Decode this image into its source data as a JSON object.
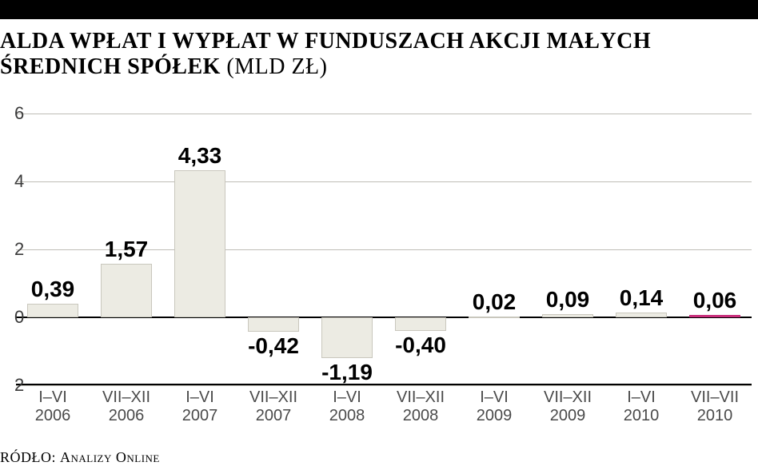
{
  "title": {
    "line1_bold": "ALDA WPŁAT I WYPŁAT W FUNDUSZACH AKCJI MAŁYCH",
    "line2_bold": "ŚREDNICH SPÓŁEK",
    "line2_paren": "(MLD ZŁ)",
    "title_fontsize": 28,
    "title_color": "#000000"
  },
  "chart": {
    "type": "bar",
    "background_color": "#ffffff",
    "grid_color": "#bfbdb6",
    "zero_line_color": "#000000",
    "ylim_min": -2,
    "ylim_max": 6,
    "ytick_step": 2,
    "yticks": [
      6,
      4,
      2,
      0,
      2
    ],
    "ytick_values": [
      6,
      4,
      2,
      0,
      -2
    ],
    "label_fontsize": 22,
    "bar_label_fontsize": 28,
    "bar_fill": "#ecebe3",
    "bar_border": "#c9c7bd",
    "highlight_fill": "#d63384",
    "bar_width_ratio": 0.7,
    "categories": [
      {
        "line1": "I–VI",
        "line2": "2006",
        "value": 0.39,
        "label": "0,39"
      },
      {
        "line1": "VII–XII",
        "line2": "2006",
        "value": 1.57,
        "label": "1,57"
      },
      {
        "line1": "I–VI",
        "line2": "2007",
        "value": 4.33,
        "label": "4,33"
      },
      {
        "line1": "VII–XII",
        "line2": "2007",
        "value": -0.42,
        "label": "-0,42"
      },
      {
        "line1": "I–VI",
        "line2": "2008",
        "value": -1.19,
        "label": "-1,19"
      },
      {
        "line1": "VII–XII",
        "line2": "2008",
        "value": -0.4,
        "label": "-0,40"
      },
      {
        "line1": "I–VI",
        "line2": "2009",
        "value": 0.02,
        "label": "0,02"
      },
      {
        "line1": "VII–XII",
        "line2": "2009",
        "value": 0.09,
        "label": "0,09"
      },
      {
        "line1": "I–VI",
        "line2": "2010",
        "value": 0.14,
        "label": "0,14"
      },
      {
        "line1": "VII–VII",
        "line2": "2010",
        "value": 0.06,
        "label": "0,06",
        "highlight": true
      }
    ],
    "xcat_fontsize": 20,
    "xcat_color": "#4a4a4a"
  },
  "source": {
    "label": "RÓDŁO:",
    "value": "Analizy Online",
    "fontsize": 18
  }
}
